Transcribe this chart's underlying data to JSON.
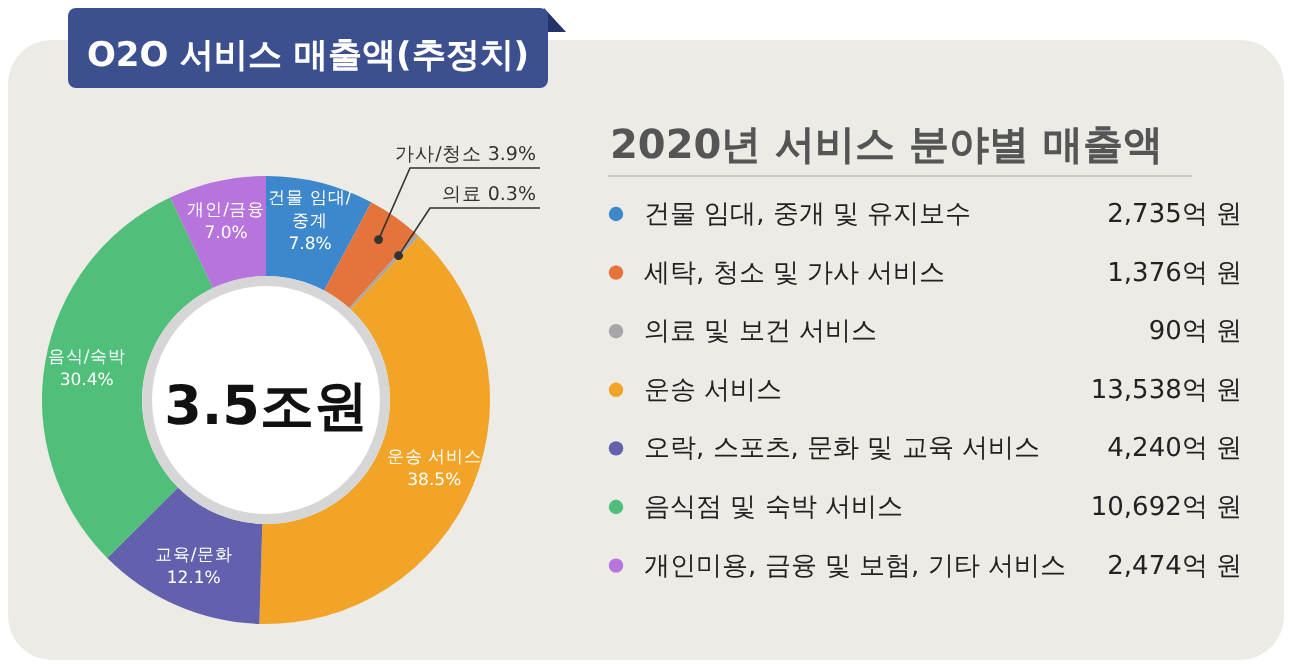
{
  "chart_data": {
    "type": "donut",
    "title": "O2O 서비스 매출액(추정치)",
    "subtitle": "2020년 서비스 분야별 매출액",
    "categories": [
      "건물 임대, 중개 및 유지보수",
      "세탁, 청소 및 가사 서비스",
      "의료 및 보건 서비스",
      "운송 서비스",
      "오락, 스포츠, 문화 및 교육 서비스",
      "음식점 및 숙박 서비스",
      "개인미용, 금융 및 보험, 기타 서비스"
    ],
    "values": [
      2735,
      1376,
      90,
      13538,
      4240,
      10692,
      2474
    ],
    "value_labels": [
      "2,735억 원",
      "1,376억 원",
      "90억 원",
      "13,538억 원",
      "4,240억 원",
      "10,692억 원",
      "2,474억 원"
    ],
    "colors": [
      "#3d87cc",
      "#e4743c",
      "#a6a6a6",
      "#f2a428",
      "#6360ad",
      "#4fbf7a",
      "#b774dc"
    ],
    "annotations": [
      "건물 임대/중계 7.8%",
      "가사/청소 3.9%",
      "의료 0.3%",
      "운송 서비스 38.5%",
      "교육/문화 12.1%",
      "음식/숙박 30.4%",
      "개인/금융 7.0%",
      "3.5조원"
    ],
    "legend": "right"
  }
}
